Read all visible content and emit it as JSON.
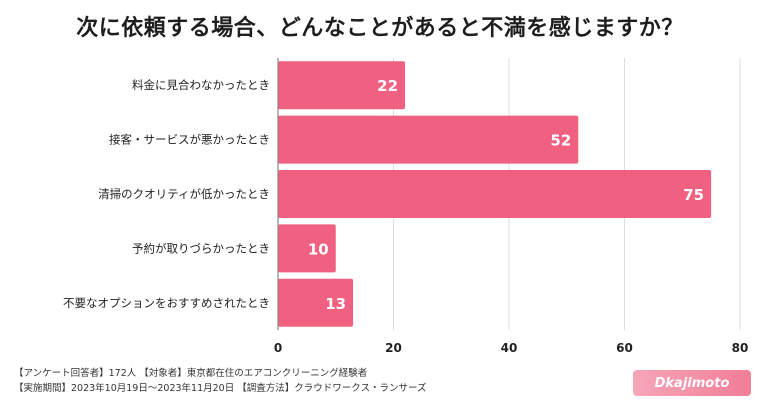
{
  "chart_data": {
    "type": "bar",
    "orientation": "horizontal",
    "title": "次に依頼する場合、どんなことがあると不満を感じますか？",
    "categories": [
      "料金に見合わなかったとき",
      "接客・サービスが悪かったとき",
      "清掃のクオリティが低かったとき",
      "予約が取りづらかったとき",
      "不要なオプションをおすすめされたとき"
    ],
    "values": [
      22,
      52,
      75,
      10,
      13
    ],
    "xlim": [
      0,
      80
    ],
    "xticks": [
      0,
      20,
      40,
      60,
      80
    ],
    "grid": true,
    "legend": "none",
    "bar_color": "#f06080"
  },
  "footer": {
    "line1": "【アンケート回答者】172人 【対象者】東京都在住のエアコンクリーニング経験者",
    "line2": "【実施期間】2023年10月19日～2023年11月20日 【調査方法】クラウドワークス・ランサーズ"
  },
  "logo": {
    "text": "Dkajimoto"
  }
}
